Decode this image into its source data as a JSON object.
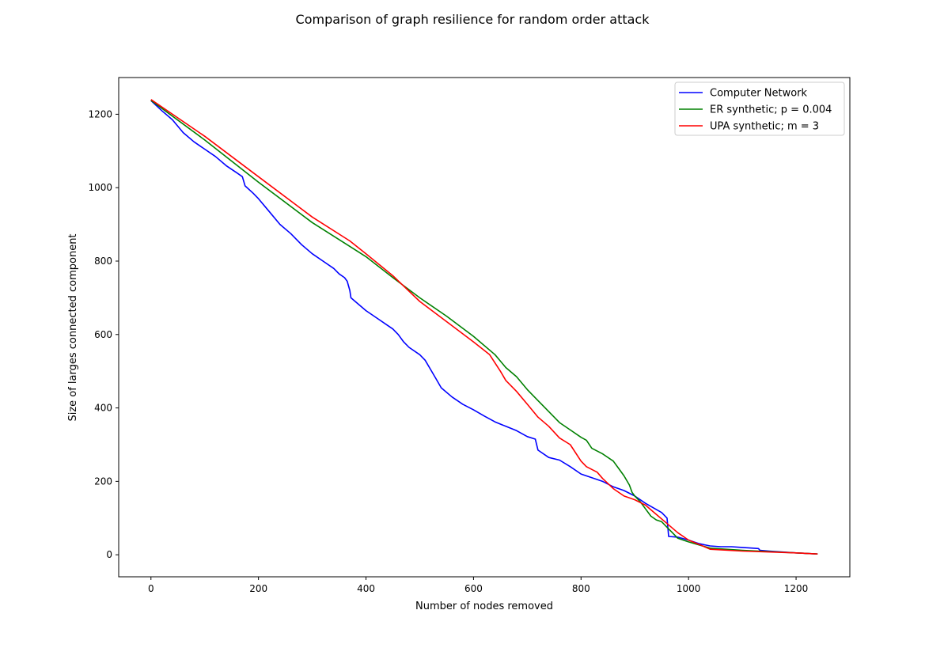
{
  "chart_data": {
    "type": "line",
    "title": "Comparison of graph resilience for random order attack",
    "xlabel": "Number of nodes removed",
    "ylabel": "Size of larges connected component",
    "xlim": [
      -60,
      1300
    ],
    "ylim": [
      -60,
      1300
    ],
    "xticks": [
      0,
      200,
      400,
      600,
      800,
      1000,
      1200
    ],
    "yticks": [
      0,
      200,
      400,
      600,
      800,
      1000,
      1200
    ],
    "grid": false,
    "legend_position": "top-right",
    "series": [
      {
        "name": "Computer Network",
        "color": "#0000ff",
        "x": [
          0,
          20,
          40,
          60,
          80,
          100,
          120,
          140,
          160,
          170,
          175,
          190,
          200,
          220,
          240,
          260,
          280,
          300,
          320,
          340,
          350,
          360,
          365,
          370,
          372,
          380,
          400,
          420,
          440,
          450,
          460,
          470,
          480,
          500,
          510,
          520,
          530,
          540,
          560,
          580,
          600,
          620,
          640,
          660,
          680,
          700,
          715,
          720,
          740,
          760,
          780,
          800,
          820,
          840,
          860,
          880,
          900,
          920,
          950,
          960,
          963,
          980,
          1000,
          1020,
          1040,
          1060,
          1080,
          1100,
          1120,
          1130,
          1133,
          1150,
          1200,
          1240
        ],
        "y": [
          1237,
          1210,
          1185,
          1150,
          1125,
          1105,
          1085,
          1060,
          1040,
          1030,
          1005,
          985,
          970,
          935,
          900,
          875,
          845,
          820,
          800,
          780,
          765,
          755,
          745,
          720,
          700,
          690,
          665,
          645,
          625,
          615,
          600,
          580,
          565,
          545,
          530,
          505,
          480,
          455,
          430,
          410,
          395,
          378,
          362,
          350,
          338,
          322,
          315,
          285,
          265,
          258,
          240,
          220,
          210,
          200,
          185,
          175,
          160,
          140,
          115,
          100,
          50,
          48,
          40,
          30,
          24,
          22,
          22,
          20,
          18,
          17,
          12,
          10,
          5,
          2
        ]
      },
      {
        "name": "ER synthetic; p = 0.004",
        "color": "#008000",
        "x": [
          0,
          100,
          200,
          300,
          370,
          400,
          450,
          500,
          550,
          600,
          640,
          660,
          680,
          700,
          720,
          740,
          760,
          780,
          800,
          810,
          820,
          840,
          860,
          870,
          880,
          890,
          895,
          900,
          910,
          920,
          930,
          940,
          950,
          960,
          970,
          980,
          990,
          1000,
          1040,
          1100,
          1200,
          1240
        ],
        "y": [
          1238,
          1130,
          1015,
          905,
          840,
          812,
          755,
          700,
          650,
          595,
          545,
          510,
          485,
          450,
          420,
          390,
          360,
          340,
          320,
          312,
          290,
          275,
          255,
          235,
          215,
          190,
          170,
          160,
          145,
          125,
          105,
          95,
          90,
          75,
          60,
          45,
          40,
          35,
          18,
          12,
          5,
          2
        ]
      },
      {
        "name": "UPA synthetic; m = 3",
        "color": "#ff0000",
        "x": [
          0,
          100,
          200,
          300,
          370,
          400,
          450,
          500,
          550,
          600,
          630,
          650,
          660,
          680,
          700,
          720,
          740,
          760,
          780,
          800,
          810,
          830,
          840,
          860,
          880,
          900,
          920,
          940,
          960,
          980,
          1000,
          1020,
          1040,
          1100,
          1200,
          1240
        ],
        "y": [
          1240,
          1140,
          1030,
          920,
          855,
          820,
          760,
          690,
          635,
          580,
          545,
          500,
          475,
          445,
          410,
          375,
          350,
          318,
          300,
          255,
          240,
          225,
          208,
          180,
          160,
          150,
          135,
          110,
          85,
          60,
          40,
          28,
          15,
          10,
          5,
          2
        ]
      }
    ]
  }
}
